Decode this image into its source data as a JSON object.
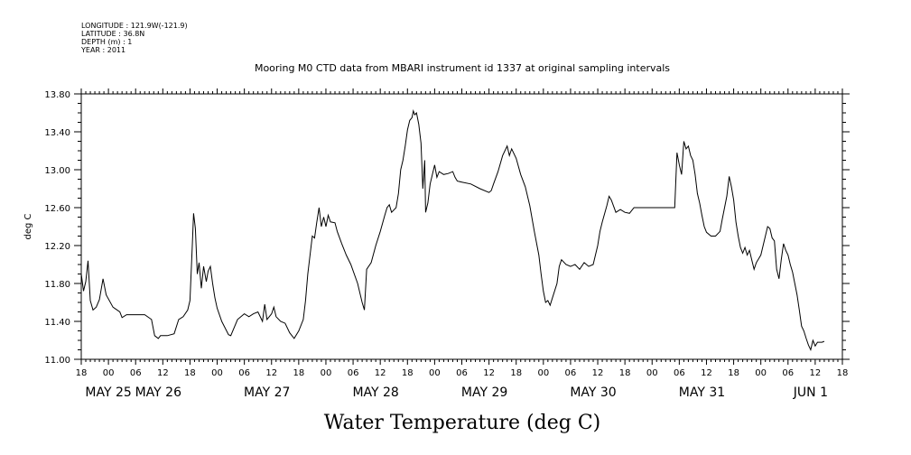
{
  "meta": {
    "longitude": "LONGITUDE : 121.9W(-121.9)",
    "latitude": "LATITUDE : 36.8N",
    "depth": "DEPTH (m) : 1",
    "year": "YEAR : 2011"
  },
  "chart_data": {
    "type": "line",
    "title": "Mooring M0 CTD data from MBARI instrument id 1337 at original sampling intervals",
    "footer": "Water Temperature (deg C)",
    "ylabel": "deg C",
    "ylim": [
      11.0,
      13.8
    ],
    "yticks": [
      "11.00",
      "11.40",
      "11.80",
      "12.20",
      "12.60",
      "13.00",
      "13.40",
      "13.80"
    ],
    "xlim_hours": [
      0,
      168
    ],
    "hour_ticks": [
      "18",
      "00",
      "06",
      "12",
      "18",
      "00",
      "06",
      "12",
      "18",
      "00",
      "06",
      "12",
      "18",
      "00",
      "06",
      "12",
      "18",
      "00",
      "06",
      "12",
      "18",
      "00",
      "06",
      "12",
      "18",
      "00",
      "06",
      "12",
      "18"
    ],
    "date_labels": [
      {
        "label": "MAY 25",
        "hour": 6
      },
      {
        "label": "MAY 26",
        "hour": 17
      },
      {
        "label": "MAY 27",
        "hour": 41
      },
      {
        "label": "MAY 28",
        "hour": 65
      },
      {
        "label": "MAY 29",
        "hour": 89
      },
      {
        "label": "MAY 30",
        "hour": 113
      },
      {
        "label": "MAY 31",
        "hour": 137
      },
      {
        "label": "JUN  1",
        "hour": 161
      }
    ],
    "x_note": "x = hours since May 24 18:00 (2011)",
    "series": [
      {
        "name": "Water Temperature",
        "color": "#000000",
        "points": [
          [
            0,
            11.9
          ],
          [
            0.5,
            11.72
          ],
          [
            1,
            11.82
          ],
          [
            1.5,
            12.04
          ],
          [
            2,
            11.62
          ],
          [
            2.6,
            11.52
          ],
          [
            3.3,
            11.55
          ],
          [
            4,
            11.63
          ],
          [
            4.8,
            11.85
          ],
          [
            5.5,
            11.68
          ],
          [
            7,
            11.55
          ],
          [
            8.5,
            11.5
          ],
          [
            9,
            11.44
          ],
          [
            10,
            11.47
          ],
          [
            12,
            11.47
          ],
          [
            14,
            11.47
          ],
          [
            15.5,
            11.42
          ],
          [
            16.2,
            11.25
          ],
          [
            17,
            11.22
          ],
          [
            17.5,
            11.25
          ],
          [
            19,
            11.25
          ],
          [
            20.5,
            11.27
          ],
          [
            21.5,
            11.42
          ],
          [
            22.5,
            11.45
          ],
          [
            23.5,
            11.52
          ],
          [
            24,
            11.62
          ],
          [
            24.5,
            12.18
          ],
          [
            24.8,
            12.54
          ],
          [
            25.2,
            12.38
          ],
          [
            25.6,
            11.9
          ],
          [
            26,
            12.02
          ],
          [
            26.5,
            11.75
          ],
          [
            27,
            11.98
          ],
          [
            27.6,
            11.82
          ],
          [
            28,
            11.93
          ],
          [
            28.5,
            11.98
          ],
          [
            29,
            11.8
          ],
          [
            29.5,
            11.65
          ],
          [
            30,
            11.54
          ],
          [
            31,
            11.4
          ],
          [
            32.5,
            11.26
          ],
          [
            33,
            11.25
          ],
          [
            34.5,
            11.42
          ],
          [
            36,
            11.48
          ],
          [
            37,
            11.45
          ],
          [
            38,
            11.48
          ],
          [
            39,
            11.5
          ],
          [
            40,
            11.4
          ],
          [
            40.5,
            11.58
          ],
          [
            41,
            11.42
          ],
          [
            42,
            11.48
          ],
          [
            42.5,
            11.55
          ],
          [
            43,
            11.45
          ],
          [
            44,
            11.4
          ],
          [
            45,
            11.38
          ],
          [
            46,
            11.28
          ],
          [
            47,
            11.22
          ],
          [
            48,
            11.3
          ],
          [
            49,
            11.42
          ],
          [
            49.5,
            11.62
          ],
          [
            50,
            11.9
          ],
          [
            50.5,
            12.1
          ],
          [
            51,
            12.3
          ],
          [
            51.5,
            12.28
          ],
          [
            52,
            12.45
          ],
          [
            52.5,
            12.6
          ],
          [
            53,
            12.4
          ],
          [
            53.5,
            12.5
          ],
          [
            54,
            12.4
          ],
          [
            54.5,
            12.52
          ],
          [
            55,
            12.45
          ],
          [
            56,
            12.44
          ],
          [
            56.5,
            12.35
          ],
          [
            57.5,
            12.22
          ],
          [
            58.5,
            12.1
          ],
          [
            59.5,
            12.0
          ],
          [
            61,
            11.8
          ],
          [
            62,
            11.6
          ],
          [
            62.5,
            11.52
          ],
          [
            63,
            11.95
          ],
          [
            64,
            12.02
          ],
          [
            65,
            12.2
          ],
          [
            66,
            12.35
          ],
          [
            67,
            12.52
          ],
          [
            67.5,
            12.6
          ],
          [
            68,
            12.63
          ],
          [
            68.5,
            12.55
          ],
          [
            69.5,
            12.6
          ],
          [
            70,
            12.75
          ],
          [
            70.5,
            13.0
          ],
          [
            71,
            13.1
          ],
          [
            71.5,
            13.25
          ],
          [
            72,
            13.42
          ],
          [
            72.5,
            13.52
          ],
          [
            73,
            13.55
          ],
          [
            73.3,
            13.62
          ],
          [
            73.6,
            13.58
          ],
          [
            74,
            13.6
          ],
          [
            74.5,
            13.48
          ],
          [
            75,
            13.28
          ],
          [
            75.4,
            12.8
          ],
          [
            75.8,
            13.1
          ],
          [
            76,
            12.55
          ],
          [
            76.5,
            12.65
          ],
          [
            77,
            12.85
          ],
          [
            77.5,
            12.95
          ],
          [
            78,
            13.05
          ],
          [
            78.5,
            12.92
          ],
          [
            79,
            12.98
          ],
          [
            80,
            12.95
          ],
          [
            81,
            12.96
          ],
          [
            82,
            12.98
          ],
          [
            82.5,
            12.92
          ],
          [
            83,
            12.88
          ],
          [
            84,
            12.87
          ],
          [
            86,
            12.85
          ],
          [
            88,
            12.8
          ],
          [
            90,
            12.76
          ],
          [
            90.5,
            12.78
          ],
          [
            91,
            12.85
          ],
          [
            92,
            12.98
          ],
          [
            93,
            13.15
          ],
          [
            94,
            13.25
          ],
          [
            94.5,
            13.15
          ],
          [
            95,
            13.22
          ],
          [
            96,
            13.12
          ],
          [
            97,
            12.95
          ],
          [
            98,
            12.82
          ],
          [
            99,
            12.62
          ],
          [
            100,
            12.35
          ],
          [
            101,
            12.1
          ],
          [
            101.5,
            11.9
          ],
          [
            102,
            11.72
          ],
          [
            102.5,
            11.6
          ],
          [
            103,
            11.62
          ],
          [
            103.5,
            11.57
          ],
          [
            104,
            11.65
          ],
          [
            105,
            11.8
          ],
          [
            105.5,
            11.98
          ],
          [
            106,
            12.05
          ],
          [
            107,
            12.0
          ],
          [
            108,
            11.98
          ],
          [
            109,
            12.0
          ],
          [
            110,
            11.95
          ],
          [
            111,
            12.02
          ],
          [
            112,
            11.98
          ],
          [
            113,
            12.0
          ],
          [
            114,
            12.2
          ],
          [
            114.5,
            12.35
          ],
          [
            115,
            12.45
          ],
          [
            116,
            12.62
          ],
          [
            116.5,
            12.72
          ],
          [
            117,
            12.68
          ],
          [
            118,
            12.55
          ],
          [
            119,
            12.58
          ],
          [
            120,
            12.55
          ],
          [
            121,
            12.54
          ],
          [
            122,
            12.6
          ],
          [
            131,
            12.6
          ],
          [
            131.5,
            13.18
          ],
          [
            132,
            13.05
          ],
          [
            132.5,
            12.95
          ],
          [
            133,
            13.3
          ],
          [
            133.5,
            13.22
          ],
          [
            134,
            13.25
          ],
          [
            134.5,
            13.15
          ],
          [
            135,
            13.1
          ],
          [
            135.5,
            12.95
          ],
          [
            136,
            12.75
          ],
          [
            136.5,
            12.65
          ],
          [
            137,
            12.52
          ],
          [
            137.5,
            12.4
          ],
          [
            138,
            12.34
          ],
          [
            139,
            12.3
          ],
          [
            140,
            12.3
          ],
          [
            141,
            12.35
          ],
          [
            141.5,
            12.48
          ],
          [
            142,
            12.6
          ],
          [
            142.5,
            12.72
          ],
          [
            143,
            12.93
          ],
          [
            143.5,
            12.82
          ],
          [
            144,
            12.68
          ],
          [
            144.5,
            12.45
          ],
          [
            145,
            12.3
          ],
          [
            145.5,
            12.18
          ],
          [
            146,
            12.12
          ],
          [
            146.5,
            12.18
          ],
          [
            147,
            12.1
          ],
          [
            147.5,
            12.15
          ],
          [
            148,
            12.05
          ],
          [
            148.5,
            11.95
          ],
          [
            149,
            12.02
          ],
          [
            150,
            12.1
          ],
          [
            151,
            12.3
          ],
          [
            151.5,
            12.4
          ],
          [
            152,
            12.38
          ],
          [
            152.5,
            12.28
          ],
          [
            153,
            12.25
          ],
          [
            153.5,
            11.95
          ],
          [
            154,
            11.85
          ],
          [
            154.5,
            12.05
          ],
          [
            155,
            12.22
          ],
          [
            155.5,
            12.15
          ],
          [
            156,
            12.1
          ],
          [
            156.5,
            12.0
          ],
          [
            157,
            11.92
          ],
          [
            157.5,
            11.8
          ],
          [
            158,
            11.68
          ],
          [
            158.5,
            11.52
          ],
          [
            159,
            11.35
          ],
          [
            159.5,
            11.3
          ],
          [
            160,
            11.22
          ],
          [
            160.5,
            11.15
          ],
          [
            161,
            11.1
          ],
          [
            161.5,
            11.2
          ],
          [
            162,
            11.14
          ],
          [
            162.5,
            11.18
          ],
          [
            163.5,
            11.18
          ],
          [
            164,
            11.19
          ]
        ]
      }
    ]
  }
}
